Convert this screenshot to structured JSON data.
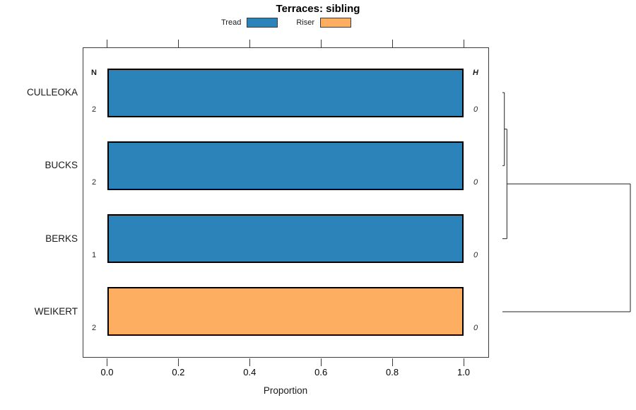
{
  "chart_data": {
    "type": "bar",
    "orientation": "horizontal",
    "stacked": true,
    "title": "Terraces: sibling",
    "xlabel": "Proportion",
    "xlim": [
      0,
      1
    ],
    "grid": false,
    "legend_position": "top-center",
    "categories": [
      "CULLEOKA",
      "BUCKS",
      "BERKS",
      "WEIKERT"
    ],
    "series": [
      {
        "name": "Tread",
        "color": "#2B83BA",
        "values": [
          1.0,
          1.0,
          1.0,
          0.0
        ]
      },
      {
        "name": "Riser",
        "color": "#FDAE61",
        "values": [
          0.0,
          0.0,
          0.0,
          1.0
        ]
      }
    ],
    "x_ticks": {
      "values": [
        0,
        0.2,
        0.4,
        0.6,
        0.8,
        1.0
      ],
      "labels": [
        "0.0",
        "0.2",
        "0.4",
        "0.6",
        "0.8",
        "1.0"
      ]
    },
    "columns": {
      "left_header": "N",
      "right_header": "H",
      "left_values": [
        "2",
        "2",
        "1",
        "2"
      ],
      "right_values": [
        "0",
        "0",
        "0",
        "0"
      ]
    },
    "dendrogram": {
      "merges": [
        {
          "a": "CULLEOKA",
          "b": "BUCKS",
          "rel_height": 0.015
        },
        {
          "a": "M0",
          "b": "BERKS",
          "rel_height": 0.035
        },
        {
          "a": "M1",
          "b": "WEIKERT",
          "rel_height": 1.0
        }
      ]
    },
    "colors": {
      "bar_border": "#000000",
      "axis": "#3a3a3a"
    }
  }
}
